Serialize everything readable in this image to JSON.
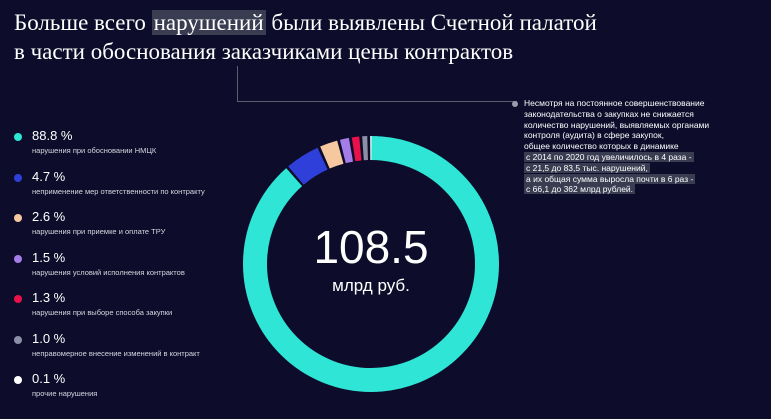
{
  "title": {
    "part1": "Больше всего ",
    "highlight": "нарушений",
    "part2": " были выявлены Счетной палатой",
    "line2": "в части обоснования заказчиками цены контрактов"
  },
  "center": {
    "value": "108.5",
    "unit": "млрд руб."
  },
  "note": {
    "plain_lines": [
      "Несмотря на постоянное совершенствование",
      "законодательства о закупках не снижается",
      "количество нарушений, выявляемых органами",
      "контроля (аудита) в сфере закупок,",
      "общее количество которых в динамике"
    ],
    "highlight_lines": [
      "с 2014 по 2020 год увеличилось в 4 раза -",
      "с 21,5 до 83,5 тыс. нарушений,",
      "а их общая сумма выросла почти в 6 раз -",
      "с 66,1 до 362 млрд рублей."
    ]
  },
  "chart_data": {
    "type": "pie",
    "total_label": "108.5",
    "total_unit": "млрд руб.",
    "slices": [
      {
        "label": "88.8 %",
        "value": 88.8,
        "name": "нарушения при обосновании НМЦК",
        "color": "#2ee5d6"
      },
      {
        "label": "4.7 %",
        "value": 4.7,
        "name": "неприменение мер ответственности по контракту",
        "color": "#2f3fd9"
      },
      {
        "label": "2.6 %",
        "value": 2.6,
        "name": "нарушения при приемке и оплате ТРУ",
        "color": "#f7c7a0"
      },
      {
        "label": "1.5 %",
        "value": 1.5,
        "name": "нарушения условий исполнения контрактов",
        "color": "#a57de8"
      },
      {
        "label": "1.3 %",
        "value": 1.3,
        "name": "нарушения при выборе способа закупки",
        "color": "#e8114a"
      },
      {
        "label": "1.0 %",
        "value": 1.0,
        "name": "неправомерное внесение изменений в контракт",
        "color": "#8c8fa8"
      },
      {
        "label": "0.1 %",
        "value": 0.1,
        "name": "прочие нарушения",
        "color": "#ffffff"
      }
    ]
  }
}
